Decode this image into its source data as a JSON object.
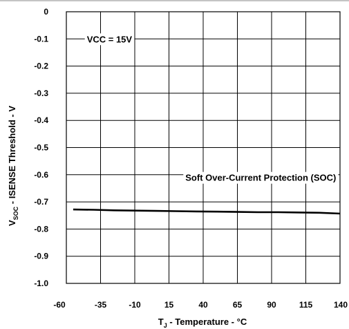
{
  "chart_data": {
    "type": "line",
    "title": "",
    "xlabel": {
      "main": "T",
      "subscript": "J",
      "rest": " - Temperature - °C"
    },
    "ylabel": {
      "main": "V",
      "subscript": "SOC",
      "rest": " - ISENSE Threshold - V"
    },
    "xlim": [
      -60,
      140
    ],
    "ylim": [
      -1.0,
      0
    ],
    "grid": true,
    "x_ticks": [
      -60,
      -35,
      -10,
      15,
      40,
      65,
      90,
      115,
      140
    ],
    "x_tick_labels": [
      "-60",
      "-35",
      "-10",
      "15",
      "40",
      "65",
      "90",
      "115",
      "140"
    ],
    "y_ticks": [
      0,
      -0.1,
      -0.2,
      -0.3,
      -0.4,
      -0.5,
      -0.6,
      -0.7,
      -0.8,
      -0.9,
      -1.0
    ],
    "y_tick_labels": [
      "0",
      "-0.1",
      "-0.2",
      "-0.3",
      "-0.4",
      "-0.5",
      "-0.6",
      "-0.7",
      "-0.8",
      "-0.9",
      "-1.0"
    ],
    "annotations": [
      {
        "text": "VCC = 15V",
        "x": -45,
        "y": -0.1
      },
      {
        "text": "Soft Over-Current Protection (SOC)",
        "x": 27,
        "y": -0.61
      }
    ],
    "series": [
      {
        "x": [
          -55,
          -40,
          -25,
          -10,
          5,
          20,
          35,
          50,
          65,
          80,
          95,
          110,
          125,
          140
        ],
        "y": [
          -0.728,
          -0.729,
          -0.731,
          -0.732,
          -0.733,
          -0.734,
          -0.735,
          -0.736,
          -0.737,
          -0.738,
          -0.738,
          -0.739,
          -0.74,
          -0.743
        ]
      }
    ]
  }
}
